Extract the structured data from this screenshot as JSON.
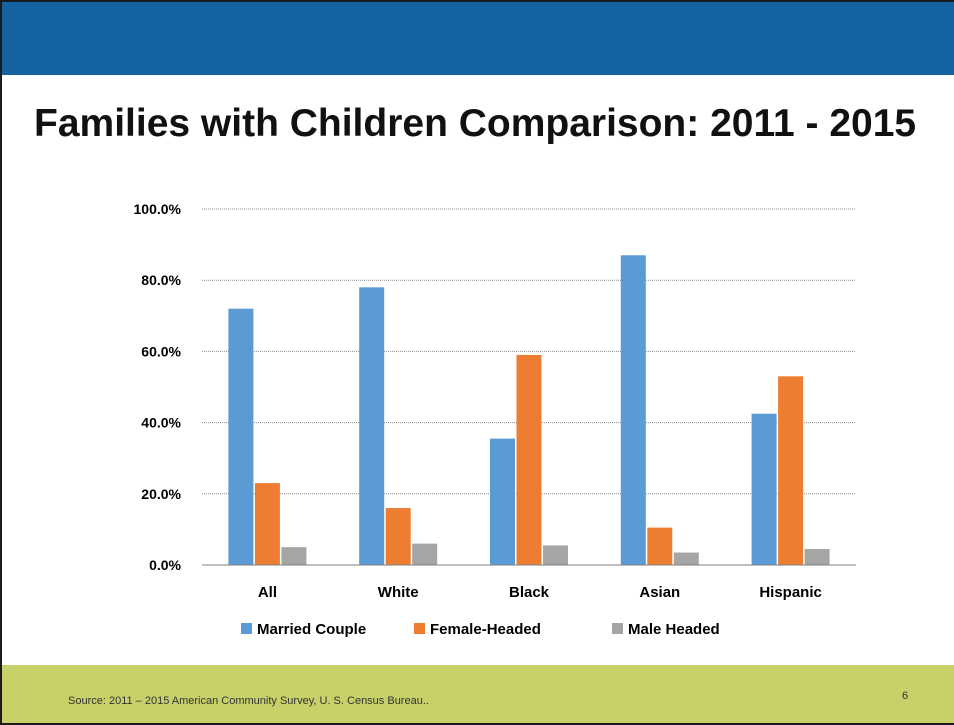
{
  "slide": {
    "title": "Families with Children Comparison: 2011 - 2015",
    "source": "Source: 2011 – 2015 American Community Survey, U. S. Census Bureau..",
    "page_number": "6"
  },
  "colors": {
    "header_band": "#1562a0",
    "footer_band": "#c8d06a"
  },
  "chart_data": {
    "type": "bar",
    "title": "",
    "xlabel": "",
    "ylabel": "",
    "categories": [
      "All",
      "White",
      "Black",
      "Asian",
      "Hispanic"
    ],
    "series": [
      {
        "name": "Married Couple",
        "color": "#5b9bd5",
        "values": [
          72.0,
          78.0,
          35.5,
          87.0,
          42.5
        ]
      },
      {
        "name": "Female-Headed",
        "color": "#ed7d31",
        "values": [
          23.0,
          16.0,
          59.0,
          10.5,
          53.0
        ]
      },
      {
        "name": "Male Headed",
        "color": "#a5a5a5",
        "values": [
          5.0,
          6.0,
          5.5,
          3.5,
          4.5
        ]
      }
    ],
    "ylim": [
      0,
      100
    ],
    "yticks": [
      0,
      20,
      40,
      60,
      80,
      100
    ],
    "ytick_labels": [
      "0.0%",
      "20.0%",
      "40.0%",
      "60.0%",
      "80.0%",
      "100.0%"
    ],
    "grid": true,
    "legend_position": "bottom"
  }
}
